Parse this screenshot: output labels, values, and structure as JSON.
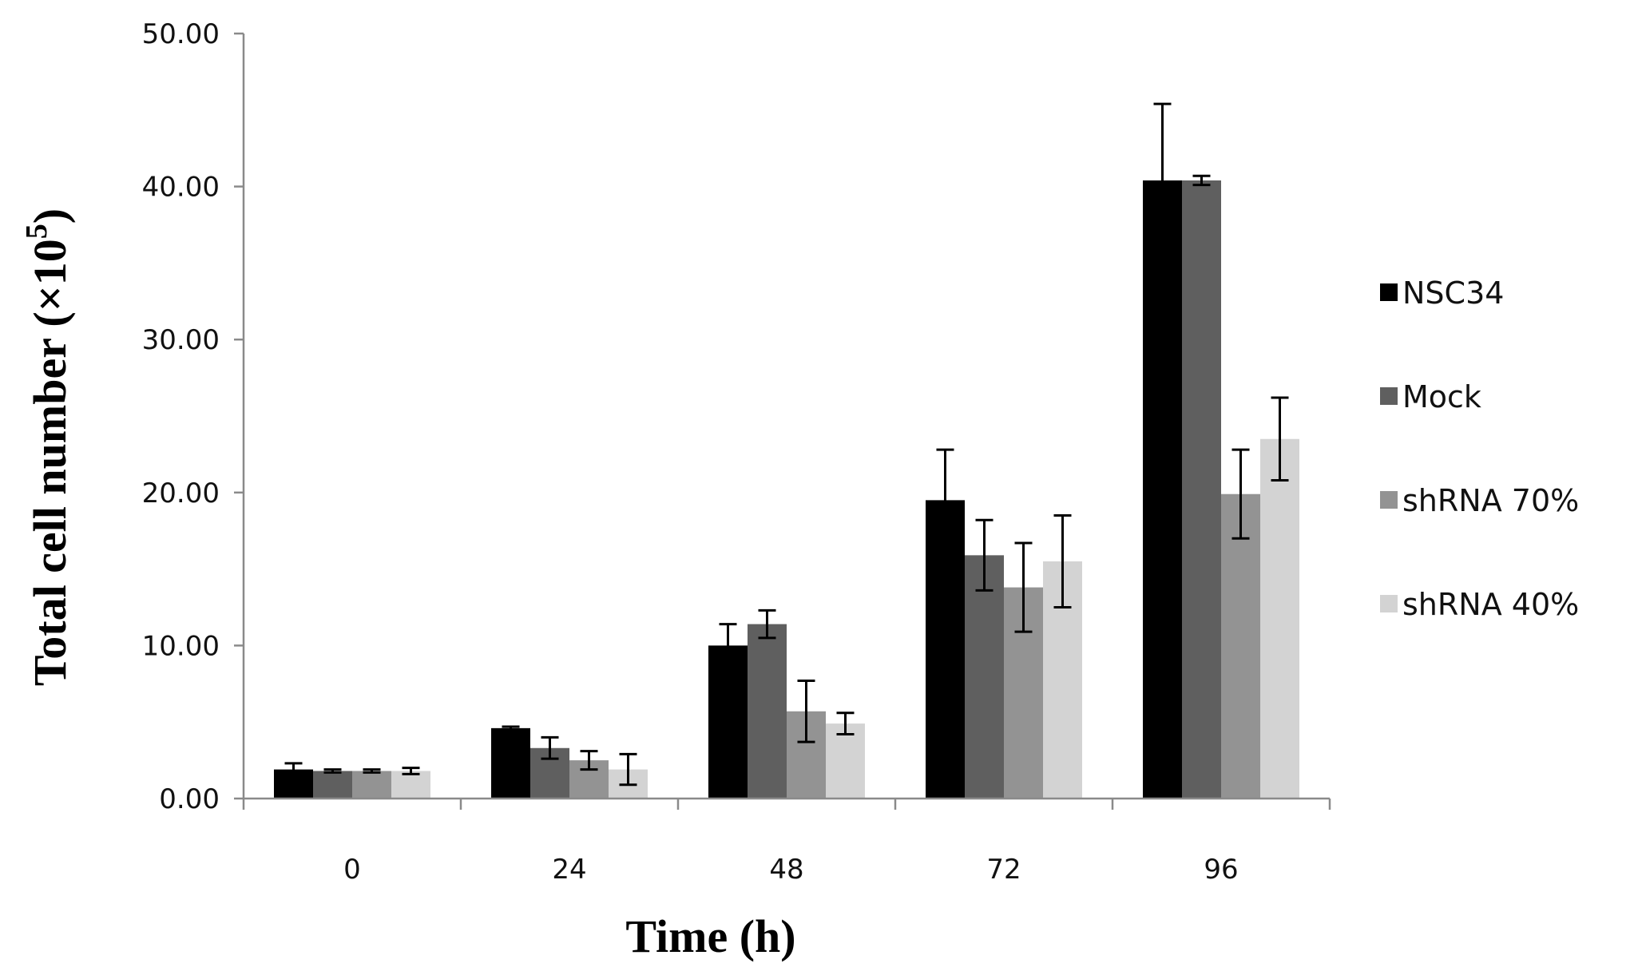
{
  "chart_data": {
    "type": "bar",
    "title": "",
    "xlabel": "Time (h)",
    "ylabel": "Total cell number (×10",
    "ylabel_superscript": "5",
    "ylabel_close": ")",
    "categories": [
      "0",
      "24",
      "48",
      "72",
      "96"
    ],
    "ylim": [
      0,
      50
    ],
    "yticks": [
      "0.00",
      "10.00",
      "20.00",
      "30.00",
      "40.00",
      "50.00"
    ],
    "ytick_values": [
      0,
      10,
      20,
      30,
      40,
      50
    ],
    "grid": false,
    "legend_position": "right",
    "series": [
      {
        "name": "NSC34",
        "color": "#000000",
        "values": [
          1.9,
          4.6,
          10.0,
          19.5,
          40.4
        ],
        "errors": [
          0.4,
          0.1,
          1.4,
          3.3,
          5.0
        ]
      },
      {
        "name": "Mock",
        "color": "#5f5f5f",
        "values": [
          1.8,
          3.3,
          11.4,
          15.9,
          40.4
        ],
        "errors": [
          0.1,
          0.7,
          0.9,
          2.3,
          0.3
        ]
      },
      {
        "name": "shRNA 70%",
        "color": "#939393",
        "values": [
          1.8,
          2.5,
          5.7,
          13.8,
          19.9
        ],
        "errors": [
          0.1,
          0.6,
          2.0,
          2.9,
          2.9
        ]
      },
      {
        "name": "shRNA 40%",
        "color": "#d3d3d3",
        "values": [
          1.8,
          1.9,
          4.9,
          15.5,
          23.5
        ],
        "errors": [
          0.2,
          1.0,
          0.7,
          3.0,
          2.7
        ]
      }
    ]
  }
}
